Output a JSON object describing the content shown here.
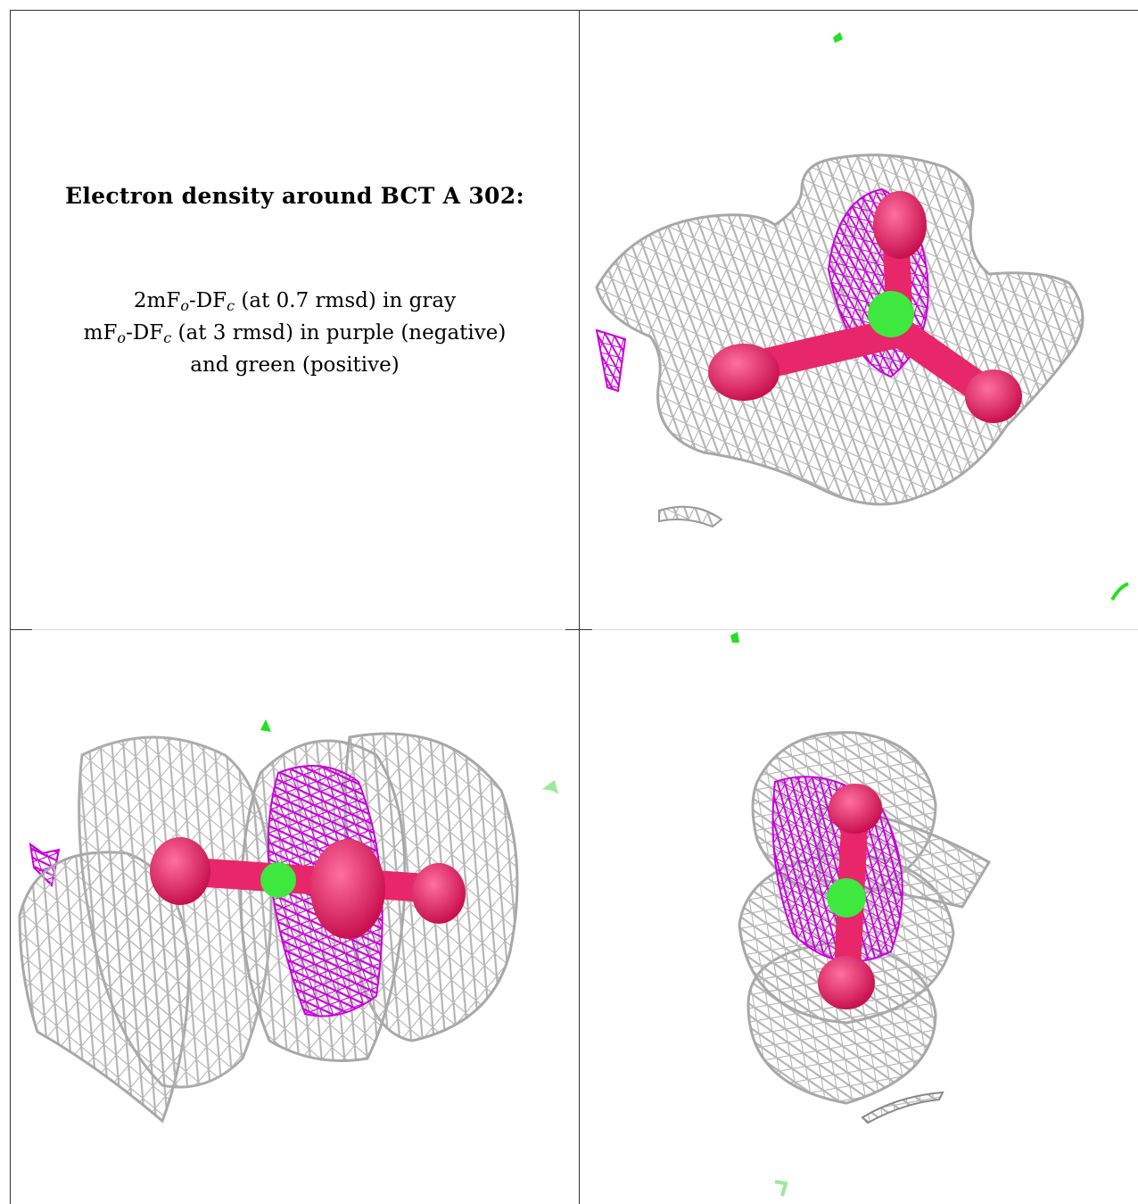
{
  "caption": {
    "title": "Electron density around BCT A 302:",
    "line1": {
      "prefix": "2mF",
      "sub1": "o",
      "mid": "-DF",
      "sub2": "c",
      "suffix": " (at 0.7 rmsd) in gray"
    },
    "line2": {
      "prefix": "mF",
      "sub1": "o",
      "mid": "-DF",
      "sub2": "c",
      "suffix": " (at 3 rmsd) in purple (negative)"
    },
    "line3": "and green (positive)"
  },
  "colors": {
    "mesh_2fofc": "#b4b4b4",
    "mesh_negative": "#c800d8",
    "mesh_positive": "#22e022",
    "ligand_oxygen": "#e8266a",
    "ligand_carbon": "#3ee83e",
    "grid_lines": "#333333"
  },
  "panels": [
    {
      "id": "caption-panel"
    },
    {
      "id": "density-view-1"
    },
    {
      "id": "density-view-2"
    },
    {
      "id": "density-view-3"
    }
  ]
}
